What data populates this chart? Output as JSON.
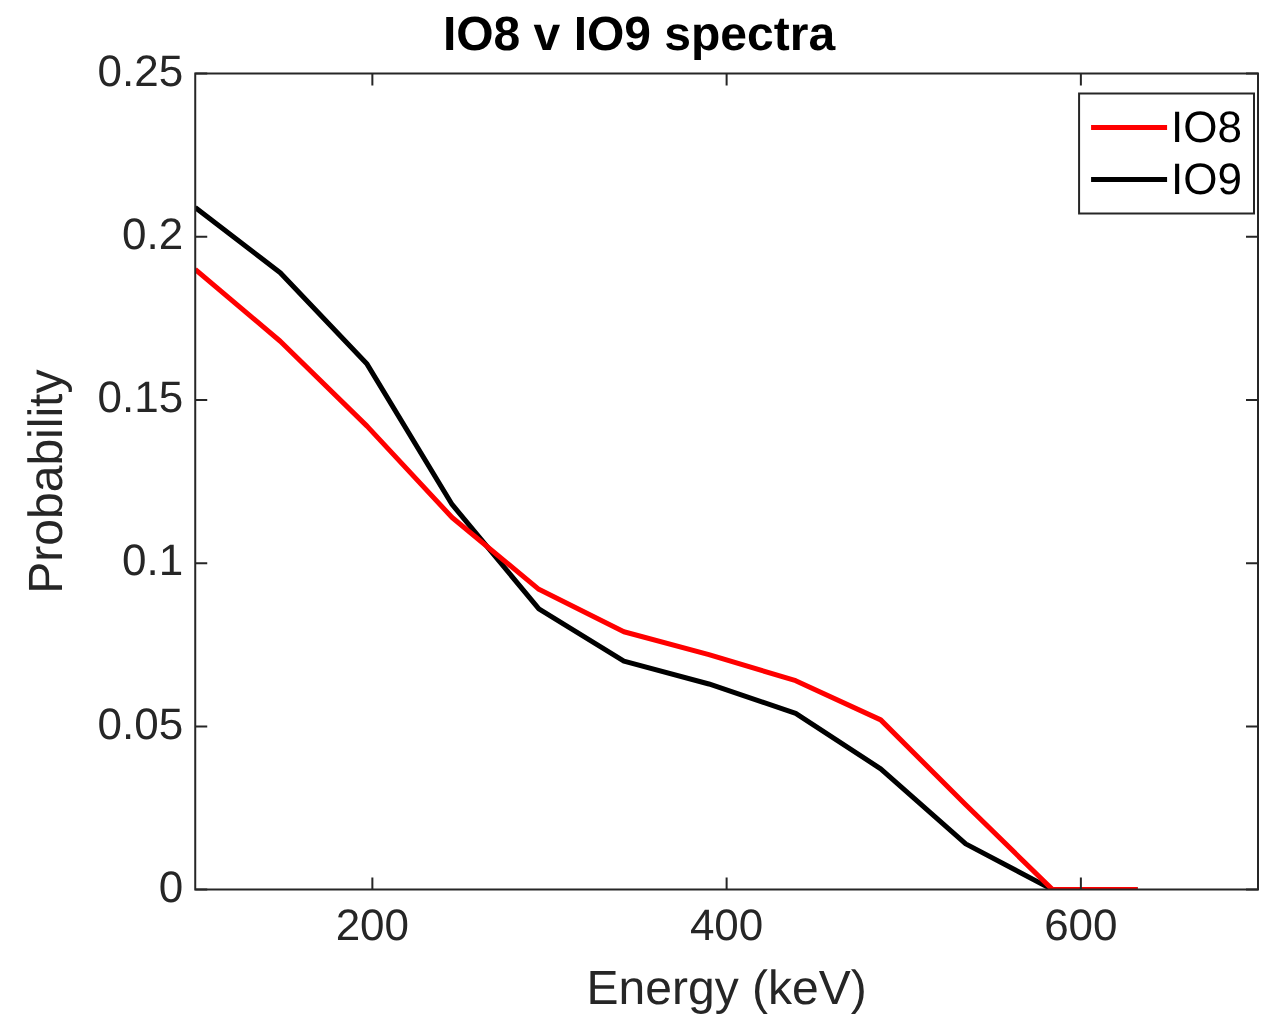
{
  "chart_data": {
    "type": "line",
    "title": "IO8 v IO9 spectra",
    "xlabel": "Energy (keV)",
    "ylabel": "Probability",
    "x": [
      100,
      148,
      197,
      245,
      294,
      342,
      390,
      439,
      487,
      535,
      584,
      632
    ],
    "series": [
      {
        "name": "IO8",
        "color": "#ff0000",
        "values": [
          0.19,
          0.168,
          0.142,
          0.114,
          0.092,
          0.079,
          0.072,
          0.064,
          0.052,
          0.026,
          0,
          0
        ]
      },
      {
        "name": "IO9",
        "color": "#000000",
        "values": [
          0.209,
          0.189,
          0.161,
          0.118,
          0.086,
          0.07,
          0.063,
          0.054,
          0.037,
          0.014,
          0,
          0
        ]
      }
    ],
    "xlim": [
      100,
      700
    ],
    "xticks": [
      200,
      400,
      600
    ],
    "ylim": [
      0,
      0.25
    ],
    "yticks": [
      0,
      0.05,
      0.1,
      0.15,
      0.2,
      0.25
    ],
    "grid": false,
    "legend": "top right",
    "marker": "none",
    "line_style": "solid"
  }
}
